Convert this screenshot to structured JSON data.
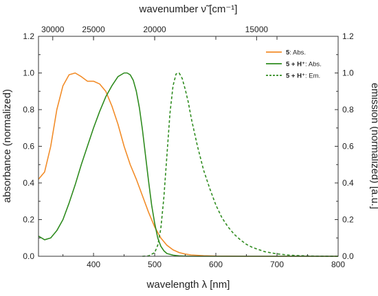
{
  "chart_data": {
    "type": "line",
    "xlabel": "wavelength λ [nm]",
    "ylabel_left": "absorbance (normalized)",
    "ylabel_right": "emission (normalized) [a.u.]",
    "xlabel_top": "wavenumber ν̃ [cm⁻¹]",
    "xlim": [
      310,
      800
    ],
    "ylim": [
      0,
      1.2
    ],
    "x_ticks": [
      400,
      500,
      600,
      700,
      800
    ],
    "x_tick_labels": [
      "400",
      "500",
      "600",
      "700",
      "800"
    ],
    "y_ticks": [
      0,
      0.2,
      0.4,
      0.6,
      0.8,
      1.0,
      1.2
    ],
    "y_tick_labels": [
      "0.0",
      "0.2",
      "0.4",
      "0.6",
      "0.8",
      "1.0",
      "1.2"
    ],
    "top_ticks_wavenumber": [
      30000,
      25000,
      20000,
      15000
    ],
    "top_tick_labels": [
      "30000",
      "25000",
      "20000",
      "15000"
    ],
    "legend_position": "top-right",
    "grid": false,
    "series": [
      {
        "legend_bold": "5",
        "legend_rest": ": Abs.",
        "color": "#f28c28",
        "dash": "solid",
        "x": [
          310,
          320,
          330,
          340,
          350,
          360,
          370,
          380,
          390,
          400,
          410,
          420,
          430,
          440,
          450,
          460,
          470,
          480,
          490,
          500,
          510,
          520,
          530,
          540,
          550,
          560,
          580,
          600,
          650,
          700,
          800
        ],
        "y": [
          0.42,
          0.46,
          0.6,
          0.8,
          0.93,
          0.99,
          1.0,
          0.98,
          0.955,
          0.955,
          0.94,
          0.9,
          0.82,
          0.72,
          0.6,
          0.5,
          0.42,
          0.33,
          0.24,
          0.16,
          0.1,
          0.06,
          0.035,
          0.02,
          0.012,
          0.007,
          0.003,
          0.001,
          0.0,
          0.0,
          0.0
        ]
      },
      {
        "legend_bold": "5 + H⁺",
        "legend_rest": ": Abs.",
        "color": "#2e8b1e",
        "dash": "solid",
        "x": [
          310,
          320,
          330,
          340,
          350,
          360,
          370,
          380,
          390,
          400,
          410,
          420,
          430,
          440,
          450,
          455,
          460,
          465,
          470,
          475,
          480,
          485,
          490,
          495,
          500,
          505,
          510,
          515,
          520,
          530,
          540,
          560,
          600,
          800
        ],
        "y": [
          0.11,
          0.09,
          0.1,
          0.14,
          0.2,
          0.29,
          0.39,
          0.5,
          0.6,
          0.7,
          0.79,
          0.87,
          0.93,
          0.98,
          1.0,
          1.0,
          0.99,
          0.96,
          0.9,
          0.81,
          0.69,
          0.55,
          0.41,
          0.28,
          0.18,
          0.1,
          0.055,
          0.03,
          0.015,
          0.006,
          0.002,
          0.0,
          0.0,
          0.0
        ]
      },
      {
        "legend_bold": "5 + H⁺",
        "legend_rest": ": Em.",
        "color": "#2e8b1e",
        "dash": "dashed",
        "x": [
          480,
          490,
          500,
          505,
          510,
          515,
          520,
          525,
          530,
          535,
          540,
          545,
          550,
          555,
          560,
          570,
          580,
          590,
          600,
          610,
          620,
          630,
          640,
          650,
          660,
          680,
          700,
          720,
          740,
          760,
          800
        ],
        "y": [
          0.0,
          0.002,
          0.02,
          0.06,
          0.15,
          0.32,
          0.55,
          0.78,
          0.93,
          0.995,
          1.0,
          0.97,
          0.91,
          0.84,
          0.75,
          0.6,
          0.47,
          0.37,
          0.28,
          0.21,
          0.16,
          0.12,
          0.09,
          0.065,
          0.048,
          0.025,
          0.013,
          0.006,
          0.003,
          0.001,
          0.0
        ]
      }
    ]
  }
}
